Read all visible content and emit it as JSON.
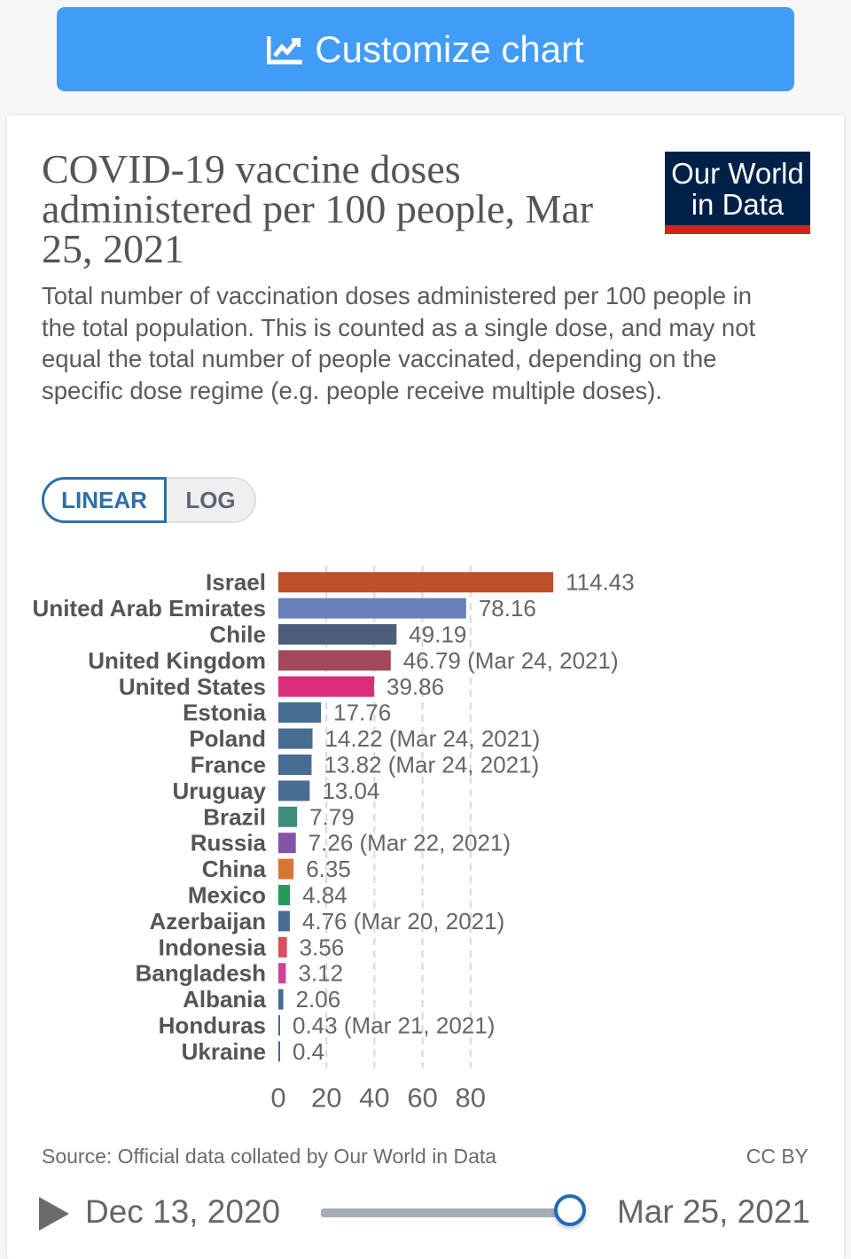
{
  "toolbar": {
    "customize_label": "Customize chart",
    "customize_icon": "line-chart-icon"
  },
  "header": {
    "title": "COVID-19 vaccine doses administered per 100 people, Mar 25, 2021",
    "subtitle": "Total number of vaccination doses administered per 100 people in the total population. This is counted as a single dose, and may not equal the total number of people vaccinated, depending on the specific dose regime (e.g. people receive multiple doses).",
    "logo_line1": "Our World",
    "logo_line2": "in Data"
  },
  "scale_toggle": {
    "options": [
      "LINEAR",
      "LOG"
    ],
    "selected": "LINEAR"
  },
  "colors": {
    "accent": "#419cf7",
    "logo_bg": "#002147",
    "logo_bar": "#ce261e",
    "toggle_active": "#2d6fa7",
    "slider_thumb": "#1e6bb8"
  },
  "chart_data": {
    "type": "bar",
    "orientation": "horizontal",
    "title": "COVID-19 vaccine doses administered per 100 people, Mar 25, 2021",
    "xlabel": "",
    "ylabel": "",
    "xlim": [
      0,
      114.43
    ],
    "x_ticks": [
      0,
      20,
      40,
      60,
      80
    ],
    "grid": true,
    "categories": [
      "Israel",
      "United Arab Emirates",
      "Chile",
      "United Kingdom",
      "United States",
      "Estonia",
      "Poland",
      "France",
      "Uruguay",
      "Brazil",
      "Russia",
      "China",
      "Mexico",
      "Azerbaijan",
      "Indonesia",
      "Bangladesh",
      "Albania",
      "Honduras",
      "Ukraine"
    ],
    "values": [
      114.43,
      78.16,
      49.19,
      46.79,
      39.86,
      17.76,
      14.22,
      13.82,
      13.04,
      7.79,
      7.26,
      6.35,
      4.84,
      4.76,
      3.56,
      3.12,
      2.06,
      0.43,
      0.4
    ],
    "value_labels": [
      "114.43",
      "78.16",
      "49.19",
      "46.79 (Mar 24, 2021)",
      "39.86",
      "17.76",
      "14.22 (Mar 24, 2021)",
      "13.82 (Mar 24, 2021)",
      "13.04",
      "7.79",
      "7.26 (Mar 22, 2021)",
      "6.35",
      "4.84",
      "4.76 (Mar 20, 2021)",
      "3.56",
      "3.12",
      "2.06",
      "0.43 (Mar 21, 2021)",
      "0.4"
    ],
    "bar_colors": [
      "#c0502a",
      "#6781b8",
      "#4d5e78",
      "#a04a5c",
      "#db2d7c",
      "#486d92",
      "#486d92",
      "#486d92",
      "#486d92",
      "#3c8d7a",
      "#8452a8",
      "#d8762f",
      "#259a5b",
      "#486d92",
      "#dd4d5d",
      "#d2429a",
      "#486d92",
      "#486d92",
      "#486d92"
    ]
  },
  "footer": {
    "source": "Source: Official data collated by Our World in Data",
    "license": "CC BY"
  },
  "timeline": {
    "start_date": "Dec 13, 2020",
    "end_date": "Mar 25, 2021",
    "position_fraction": 1.0
  }
}
